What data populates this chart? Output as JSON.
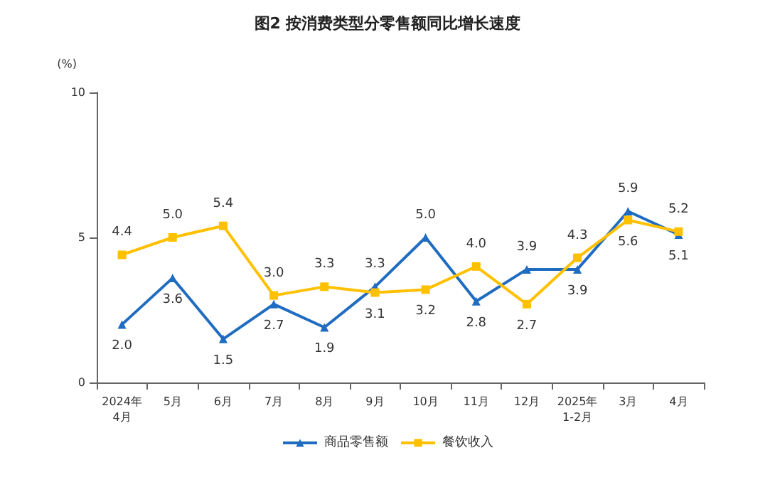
{
  "chart_data": {
    "type": "line",
    "title": "图2 按消费类型分零售额同比增长速度",
    "ylabel": "(%)",
    "categories": [
      "2024年\n4月",
      "5月",
      "6月",
      "7月",
      "8月",
      "9月",
      "10月",
      "11月",
      "12月",
      "2025年\n1-2月",
      "3月",
      "4月"
    ],
    "series": [
      {
        "name": "商品零售额",
        "color": "#1f6cc0",
        "marker": "triangle",
        "values": [
          2.0,
          3.6,
          1.5,
          2.7,
          1.9,
          3.3,
          5.0,
          2.8,
          3.9,
          3.9,
          5.9,
          5.1
        ],
        "value_labels": [
          "2.0",
          "3.6",
          "1.5",
          "2.7",
          "1.9",
          "3.3",
          "5.0",
          "2.8",
          "3.9",
          "3.9",
          "5.9",
          "5.1"
        ]
      },
      {
        "name": "餐饮收入",
        "color": "#ffc000",
        "marker": "square",
        "values": [
          4.4,
          5.0,
          5.4,
          3.0,
          3.3,
          3.1,
          3.2,
          4.0,
          2.7,
          4.3,
          5.6,
          5.2
        ],
        "value_labels": [
          "4.4",
          "5.0",
          "5.4",
          "3.0",
          "3.3",
          "3.1",
          "3.2",
          "4.0",
          "2.7",
          "4.3",
          "5.6",
          "5.2"
        ]
      }
    ],
    "ylim": [
      0,
      10
    ],
    "yticks": [
      0,
      5,
      10
    ],
    "grid": false,
    "legend": "bottom",
    "line_style": "solid"
  }
}
